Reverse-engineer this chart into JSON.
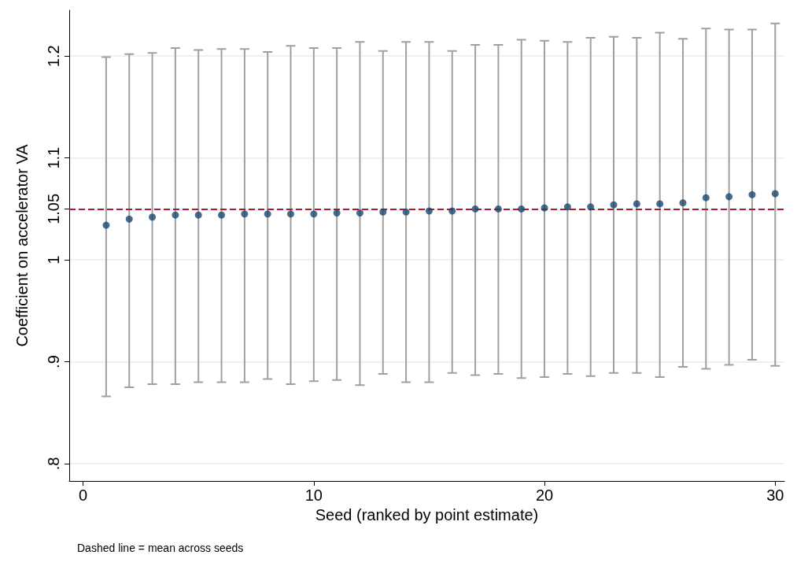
{
  "chart_data": {
    "type": "scatter",
    "xlabel": "Seed (ranked by point estimate)",
    "ylabel": "Coefficient on accelerator VA",
    "x": [
      1,
      2,
      3,
      4,
      5,
      6,
      7,
      8,
      9,
      10,
      11,
      12,
      13,
      14,
      15,
      16,
      17,
      18,
      19,
      20,
      21,
      22,
      23,
      24,
      25,
      26,
      27,
      28,
      29,
      30
    ],
    "series": [
      {
        "color": "#1a476f",
        "values": [
          1.034,
          1.04,
          1.042,
          1.044,
          1.044,
          1.044,
          1.045,
          1.045,
          1.045,
          1.045,
          1.046,
          1.046,
          1.047,
          1.047,
          1.048,
          1.048,
          1.05,
          1.05,
          1.05,
          1.051,
          1.052,
          1.052,
          1.054,
          1.055,
          1.055,
          1.056,
          1.061,
          1.062,
          1.064,
          1.065
        ],
        "errors": [
          [
            0.866,
            1.199
          ],
          [
            0.875,
            1.202
          ],
          [
            0.878,
            1.203
          ],
          [
            0.878,
            1.208
          ],
          [
            0.88,
            1.206
          ],
          [
            0.88,
            1.207
          ],
          [
            0.88,
            1.207
          ],
          [
            0.883,
            1.204
          ],
          [
            0.878,
            1.21
          ],
          [
            0.881,
            1.208
          ],
          [
            0.882,
            1.208
          ],
          [
            0.877,
            1.214
          ],
          [
            0.888,
            1.205
          ],
          [
            0.88,
            1.214
          ],
          [
            0.88,
            1.214
          ],
          [
            0.889,
            1.205
          ],
          [
            0.887,
            1.211
          ],
          [
            0.888,
            1.211
          ],
          [
            0.884,
            1.216
          ],
          [
            0.885,
            1.215
          ],
          [
            0.888,
            1.214
          ],
          [
            0.886,
            1.218
          ],
          [
            0.889,
            1.219
          ],
          [
            0.889,
            1.218
          ],
          [
            0.885,
            1.223
          ],
          [
            0.895,
            1.217
          ],
          [
            0.893,
            1.227
          ],
          [
            0.897,
            1.226
          ],
          [
            0.902,
            1.226
          ],
          [
            0.896,
            1.232
          ]
        ]
      }
    ],
    "xlim": [
      -0.6,
      30.4
    ],
    "xticks": [
      0,
      10,
      20,
      30
    ],
    "ylim": [
      0.783,
      1.245
    ],
    "yticks": [
      {
        "value": 0.8,
        "label": ".8"
      },
      {
        "value": 0.9,
        "label": ".9"
      },
      1,
      1.05,
      1.1,
      1.2
    ],
    "grid": "y",
    "marker": "circle",
    "ref_lines": [
      {
        "axis": "y",
        "value": 1.05,
        "color": "#b2182b",
        "line_style": "dashed"
      }
    ],
    "annotations": [
      "Dashed line = mean across seeds"
    ]
  }
}
